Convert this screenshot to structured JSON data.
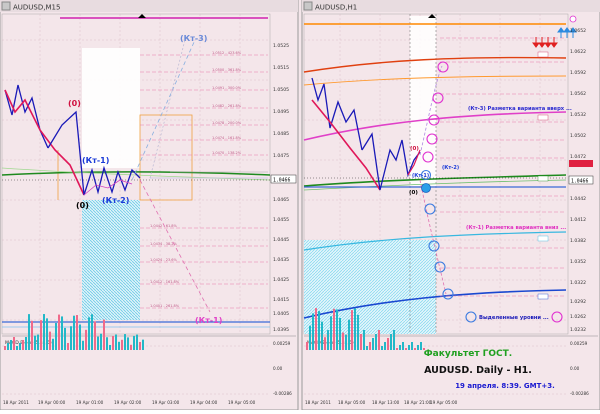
{
  "left_chart": {
    "window_title": "AUDUSD,M15",
    "price_axis": [
      "1.0525",
      "1.0515",
      "1.0505",
      "1.0495",
      "1.0485",
      "1.0475",
      "1.0465",
      "1.0455",
      "1.0445",
      "1.0435",
      "1.0425",
      "1.0415",
      "1.0405",
      "1.0395"
    ],
    "current_price": "1.0466",
    "time_axis": [
      "18 Apr 2011",
      "19 Apr 00:00",
      "19 Apr 01:00",
      "19 Apr 02:00",
      "19 Apr 03:00",
      "19 Apr 04:00",
      "19 Apr 05:00"
    ],
    "labels": {
      "zero_top": "(0)",
      "kt1": "(Кт-1)",
      "zero_bottom": "(0)",
      "kt2": "(Кт-2)",
      "kt3": "(Кт-3)",
      "kt1_bottom": "(Кт-1)"
    },
    "indicator": {
      "name": "MACD Elder (5,34,5)",
      "levels": [
        "0.00259",
        "0.00",
        "-0.00286"
      ]
    }
  },
  "right_chart": {
    "window_title": "AUDUSD,H1",
    "price_axis": [
      "1.0652",
      "1.0622",
      "1.0592",
      "1.0562",
      "1.0532",
      "1.0502",
      "1.0472",
      "1.0442",
      "1.0412",
      "1.0382",
      "1.0352",
      "1.0322",
      "1.0292",
      "1.0262",
      "1.0232"
    ],
    "current_price": "1.0466",
    "time_axis": [
      "18 Apr 2011",
      "18 Apr 05:00",
      "18 Apr 13:00",
      "18 Apr 21:00",
      "19 Apr 05:00"
    ],
    "labels": {
      "zero_a": "(0)",
      "zero_b": "(0)",
      "kt1_small": "(Кт-1)",
      "kt2_small": "(Кт-2)"
    },
    "annotations": {
      "up": "(Кт-3) Разметка варианта вверх ...",
      "down": "(Кт-1) Разметка варианта вниз ...",
      "levels": "Выделенные уровни ..."
    },
    "indicator": {
      "name": "MACD Elder (5,34,5)",
      "levels": [
        "0.00259",
        "0.00",
        "-0.00286"
      ]
    }
  },
  "branding": {
    "faculty": "Факультет ГОСТ.",
    "pair": "AUDUSD. Daily - H1.",
    "date": "19 апреля. 8:39. GMT+3."
  },
  "colors": {
    "background": "#f4e6ea",
    "wave_red": "#e0185a",
    "wave_blue": "#1a1ab8",
    "cyan_zone": "#7fd6ee",
    "magenta": "#e040c8",
    "green_ma": "#1e8a1e",
    "axis_highlight": "#e02040"
  }
}
